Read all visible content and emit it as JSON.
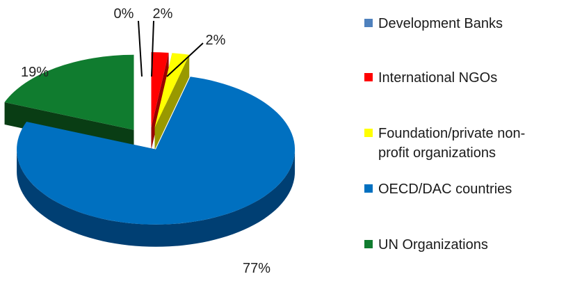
{
  "chart_data": {
    "type": "pie",
    "style": "3d-exploded",
    "categories": [
      "Development Banks",
      "International NGOs",
      "Foundation/private non-profit organizations",
      "OECD/DAC countries",
      "UN Organizations"
    ],
    "values": [
      0,
      2,
      2,
      77,
      19
    ],
    "data_labels": [
      "0%",
      "2%",
      "2%",
      "77%",
      "19%"
    ],
    "legend_lines": [
      [
        "Development Banks"
      ],
      [
        "International NGOs"
      ],
      [
        "Foundation/private non-",
        "profit organizations"
      ],
      [
        "OECD/DAC countries"
      ],
      [
        "UN Organizations"
      ]
    ],
    "colors": [
      "#4f81bd",
      "#ff0000",
      "#ffff00",
      "#0070c0",
      "#107c2f"
    ],
    "side_colors": [
      "#2e4f7a",
      "#990000",
      "#999900",
      "#003f73",
      "#093d14"
    ],
    "legend_position": "right",
    "title": "",
    "xlabel": "",
    "ylabel": ""
  }
}
